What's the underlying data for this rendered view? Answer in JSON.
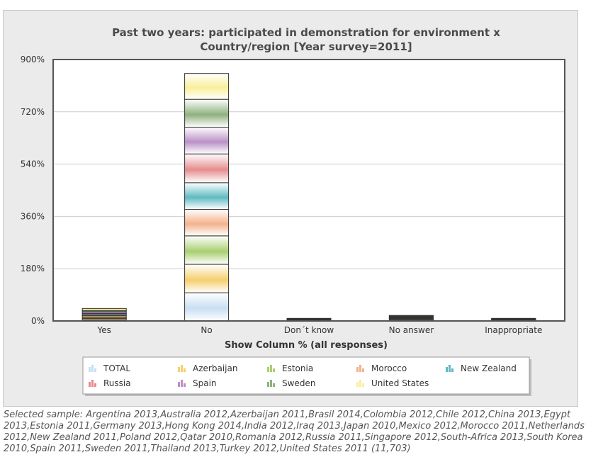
{
  "chart_data": {
    "type": "bar",
    "stacked": true,
    "title": "Past two years: participated in demonstration for environment x Country/region [Year survey=2011]",
    "title_lines": [
      "Past two years: participated in demonstration for environment x",
      "Country/region [Year survey=2011]"
    ],
    "xlabel": "Show Column % (all responses)",
    "ylabel": "",
    "ylim": [
      0,
      900
    ],
    "yticks": [
      0,
      180,
      360,
      540,
      720,
      900
    ],
    "ytick_labels": [
      "0%",
      "180%",
      "360%",
      "540%",
      "720%",
      "900%"
    ],
    "categories": [
      "Yes",
      "No",
      "Don´t know",
      "No answer",
      "Inappropriate"
    ],
    "series": [
      {
        "name": "TOTAL",
        "color": "#c8dff3",
        "values": [
          4,
          97,
          1,
          2,
          1
        ]
      },
      {
        "name": "Azerbaijan",
        "color": "#f5cf6e",
        "values": [
          5,
          98,
          1,
          3,
          1
        ]
      },
      {
        "name": "Estonia",
        "color": "#a9cf6f",
        "values": [
          4,
          98,
          1,
          2,
          1
        ]
      },
      {
        "name": "Morocco",
        "color": "#f4b28c",
        "values": [
          5,
          91,
          1,
          2,
          1
        ]
      },
      {
        "name": "New Zealand",
        "color": "#5fbac2",
        "values": [
          4,
          92,
          1,
          2,
          1
        ]
      },
      {
        "name": "Russia",
        "color": "#e58d8d",
        "values": [
          4,
          99,
          1,
          2,
          1
        ]
      },
      {
        "name": "Spain",
        "color": "#b991c6",
        "values": [
          6,
          92,
          1,
          2,
          1
        ]
      },
      {
        "name": "Sweden",
        "color": "#8fb17e",
        "values": [
          4,
          96,
          1,
          2,
          1
        ]
      },
      {
        "name": "United States",
        "color": "#f8ef9c",
        "values": [
          7,
          89,
          1,
          2,
          1
        ]
      }
    ],
    "grid": true,
    "legend_position": "bottom"
  },
  "footer": {
    "text": "Selected sample: Argentina 2013,Australia 2012,Azerbaijan 2011,Brasil 2014,Colombia 2012,Chile 2012,China 2013,Egypt 2013,Estonia 2011,Germany 2013,Hong Kong 2014,India 2012,Iraq 2013,Japan 2010,Mexico 2012,Morocco 2011,Netherlands 2012,New Zealand 2011,Poland 2012,Qatar 2010,Romania 2012,Russia 2011,Singapore 2012,South-Africa 2013,South Korea 2010,Spain 2011,Sweden 2011,Thailand 2013,Turkey 2012,United States 2011 (11,703)"
  }
}
